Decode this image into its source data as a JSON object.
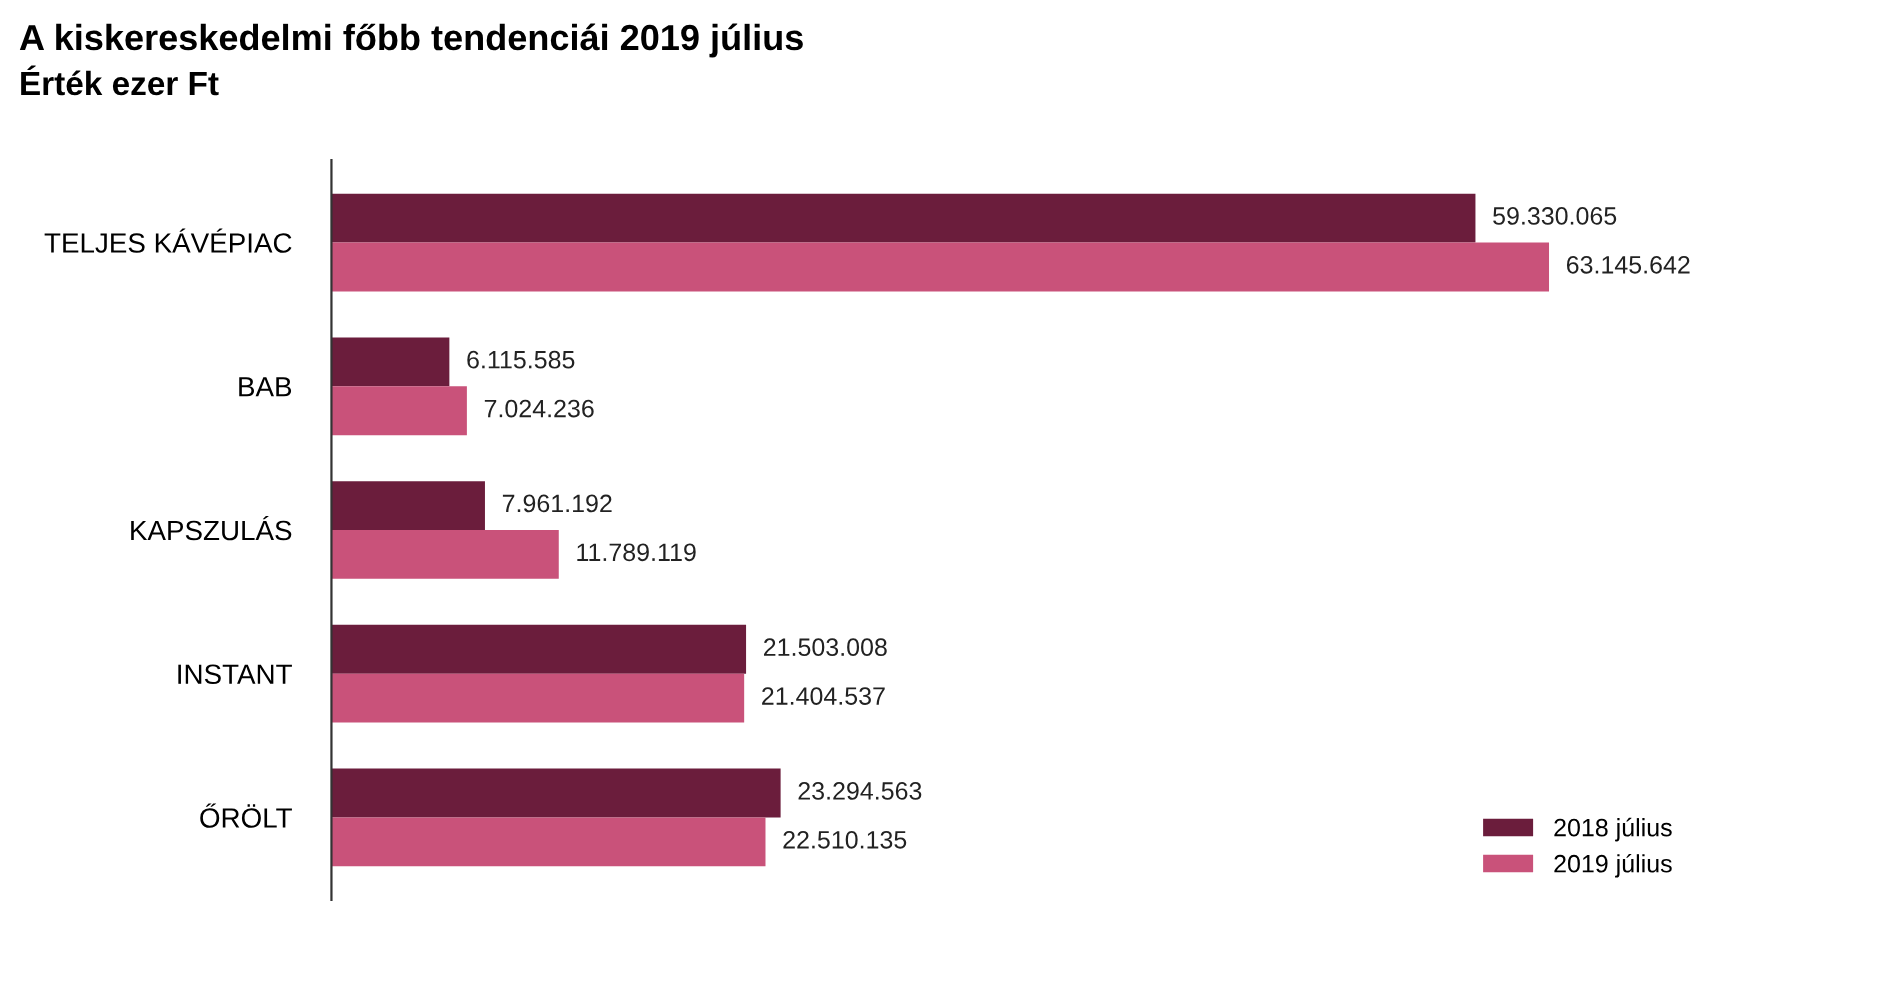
{
  "chart_data": {
    "type": "bar",
    "orientation": "horizontal",
    "title": "A kiskereskedelmi főbb tendenciái 2019 július",
    "subtitle": "Érték ezer Ft",
    "categories": [
      "TELJES KÁVÉPIAC",
      "BAB",
      "KAPSZULÁS",
      "INSTANT",
      "ŐRÖLT"
    ],
    "series": [
      {
        "name": "2018 július",
        "color": "#6b1d3c",
        "values": [
          59330065,
          6115585,
          7961192,
          21503008,
          23294563
        ],
        "value_labels": [
          "59.330.065",
          "6.115.585",
          "7.961.192",
          "21.503.008",
          "23.294.563"
        ]
      },
      {
        "name": "2019 július",
        "color": "#c9527a",
        "values": [
          63145642,
          7024236,
          11789119,
          21404537,
          22510135
        ],
        "value_labels": [
          "63.145.642",
          "7.024.236",
          "11.789.119",
          "21.404.537",
          "22.510.135"
        ]
      }
    ],
    "legend": "bottom right",
    "grid": false
  }
}
